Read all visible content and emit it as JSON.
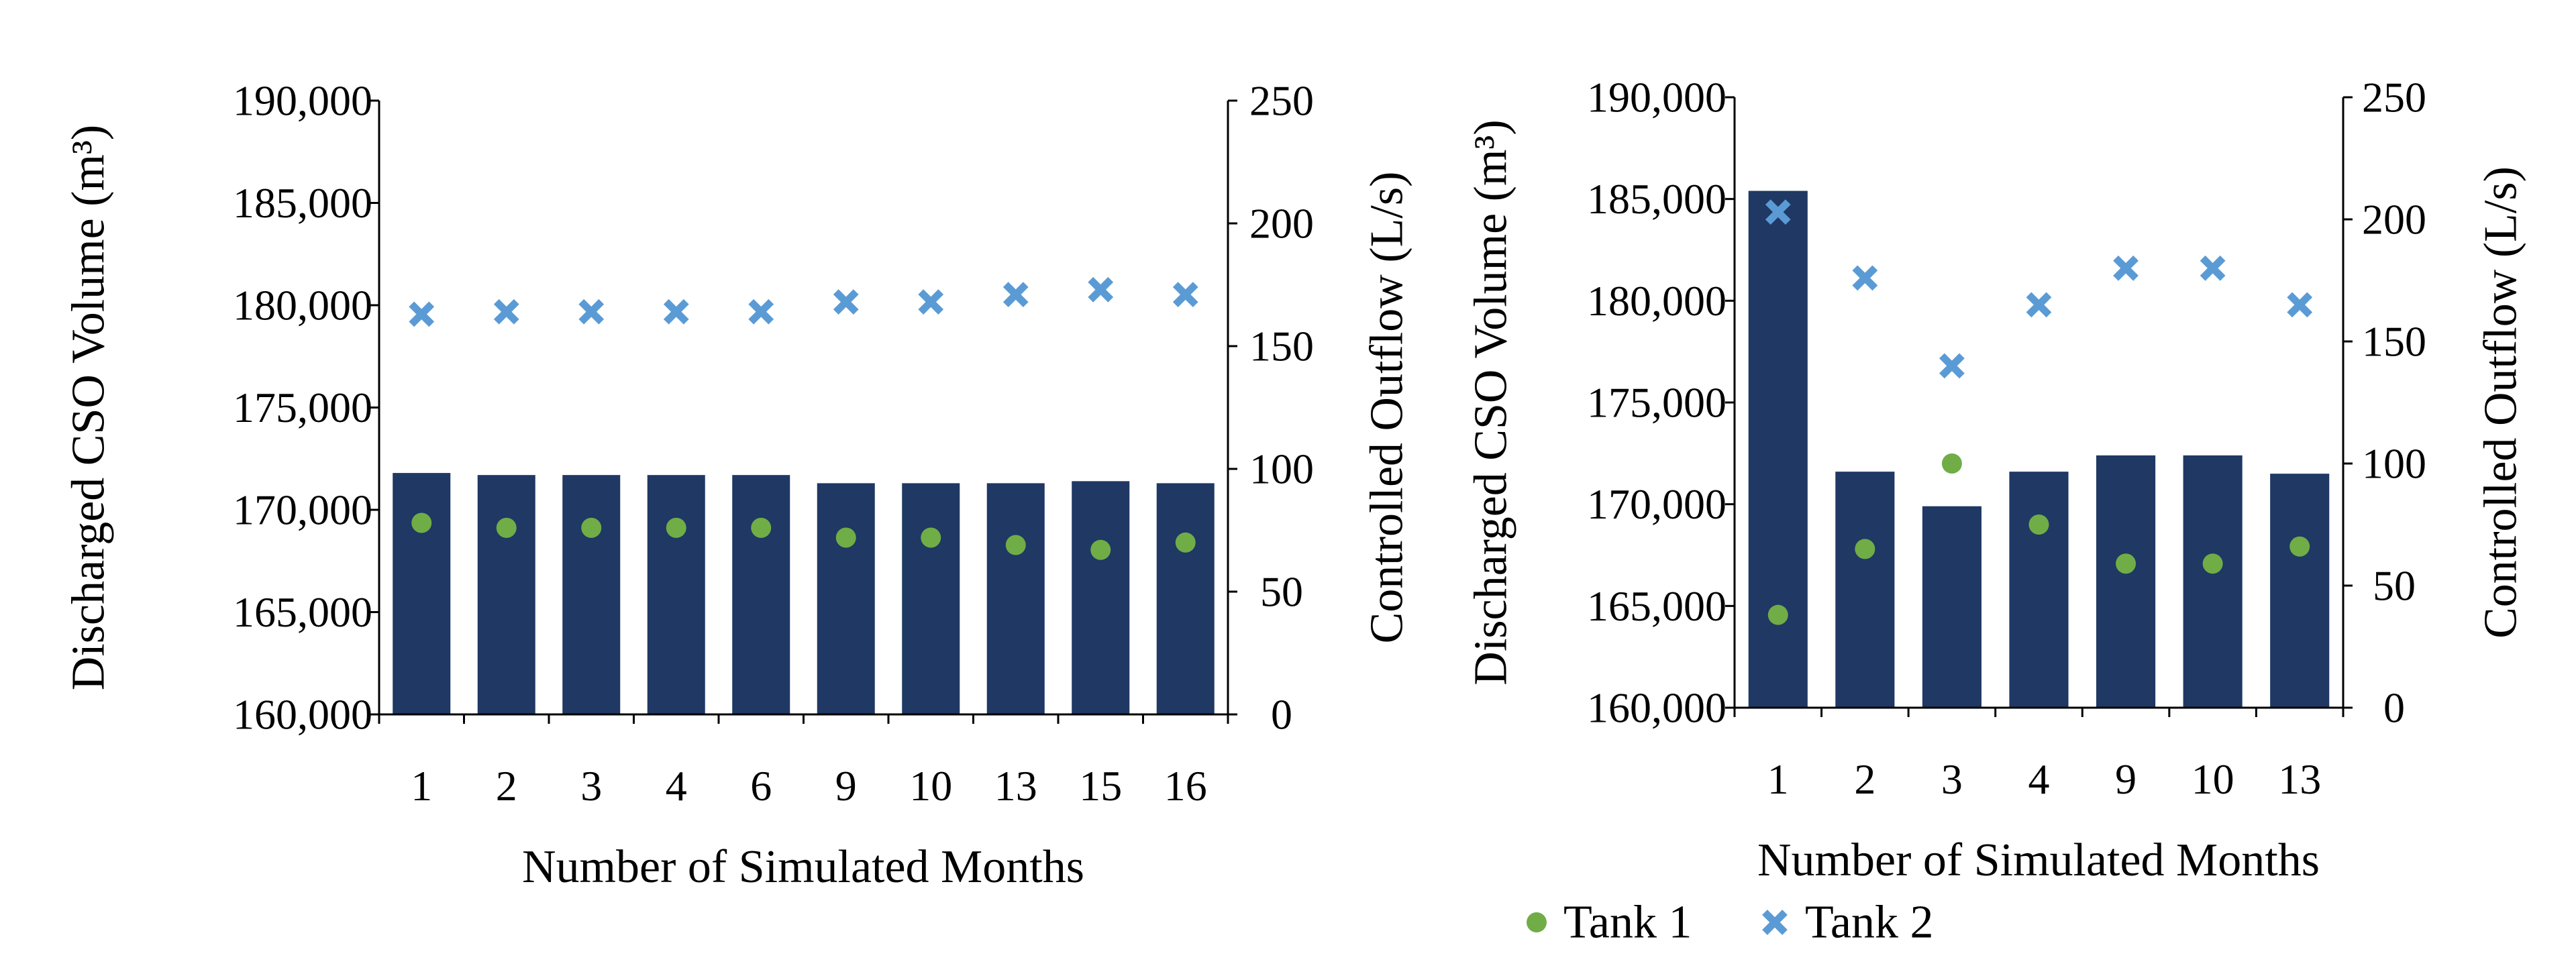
{
  "chart_data": [
    {
      "type": "bar",
      "title": "",
      "xlabel": "Number of Simulated Months",
      "ylabel": "Discharged CSO Volume (m³)",
      "y2label": "Controlled Outflow (L/s)",
      "categories": [
        "1",
        "2",
        "3",
        "4",
        "6",
        "9",
        "10",
        "13",
        "15",
        "16"
      ],
      "ylim": [
        160000,
        190000
      ],
      "y_ticks": [
        160000,
        165000,
        170000,
        175000,
        180000,
        185000,
        190000
      ],
      "y_tick_labels": [
        "160,000",
        "165,000",
        "170,000",
        "175,000",
        "180,000",
        "185,000",
        "190,000"
      ],
      "y2lim": [
        0,
        250
      ],
      "y2_ticks": [
        0,
        50,
        100,
        150,
        200,
        250
      ],
      "y2_tick_labels": [
        "0",
        "50",
        "100",
        "150",
        "200",
        "250"
      ],
      "series": [
        {
          "name": "Discharged CSO Volume",
          "type": "bar",
          "axis": "left",
          "color": "#1f3864",
          "values": [
            171800,
            171700,
            171700,
            171700,
            171700,
            171300,
            171300,
            171300,
            171400,
            171300
          ]
        },
        {
          "name": "Tank 1",
          "type": "scatter",
          "axis": "right",
          "marker": "circle",
          "color": "#70ad47",
          "values": [
            78,
            76,
            76,
            76,
            76,
            72,
            72,
            69,
            67,
            70
          ]
        },
        {
          "name": "Tank 2",
          "type": "scatter",
          "axis": "right",
          "marker": "x",
          "color": "#5b9bd5",
          "values": [
            163,
            164,
            164,
            164,
            164,
            168,
            168,
            171,
            173,
            171
          ]
        }
      ]
    },
    {
      "type": "bar",
      "title": "",
      "xlabel": "Number of Simulated Months",
      "ylabel": "Discharged CSO Volume (m³)",
      "y2label": "Controlled Outflow (L/s)",
      "categories": [
        "1",
        "2",
        "3",
        "4",
        "9",
        "10",
        "13"
      ],
      "ylim": [
        160000,
        190000
      ],
      "y_ticks": [
        160000,
        165000,
        170000,
        175000,
        180000,
        185000,
        190000
      ],
      "y_tick_labels": [
        "160,000",
        "165,000",
        "170,000",
        "175,000",
        "180,000",
        "185,000",
        "190,000"
      ],
      "y2lim": [
        0,
        250
      ],
      "y2_ticks": [
        0,
        50,
        100,
        150,
        200,
        250
      ],
      "y2_tick_labels": [
        "0",
        "50",
        "100",
        "150",
        "200",
        "250"
      ],
      "series": [
        {
          "name": "Discharged CSO Volume",
          "type": "bar",
          "axis": "left",
          "color": "#1f3864",
          "values": [
            185400,
            171600,
            169900,
            171600,
            172400,
            172400,
            171500
          ]
        },
        {
          "name": "Tank 1",
          "type": "scatter",
          "axis": "right",
          "marker": "circle",
          "color": "#70ad47",
          "values": [
            38,
            65,
            100,
            75,
            59,
            59,
            66
          ]
        },
        {
          "name": "Tank 2",
          "type": "scatter",
          "axis": "right",
          "marker": "x",
          "color": "#5b9bd5",
          "values": [
            203,
            176,
            140,
            165,
            180,
            180,
            165
          ]
        }
      ]
    }
  ],
  "legend": {
    "position": "bottom",
    "items": [
      {
        "label": "Tank 1",
        "marker": "circle",
        "color": "#70ad47"
      },
      {
        "label": "Tank 2",
        "marker": "x",
        "color": "#5b9bd5"
      }
    ]
  }
}
